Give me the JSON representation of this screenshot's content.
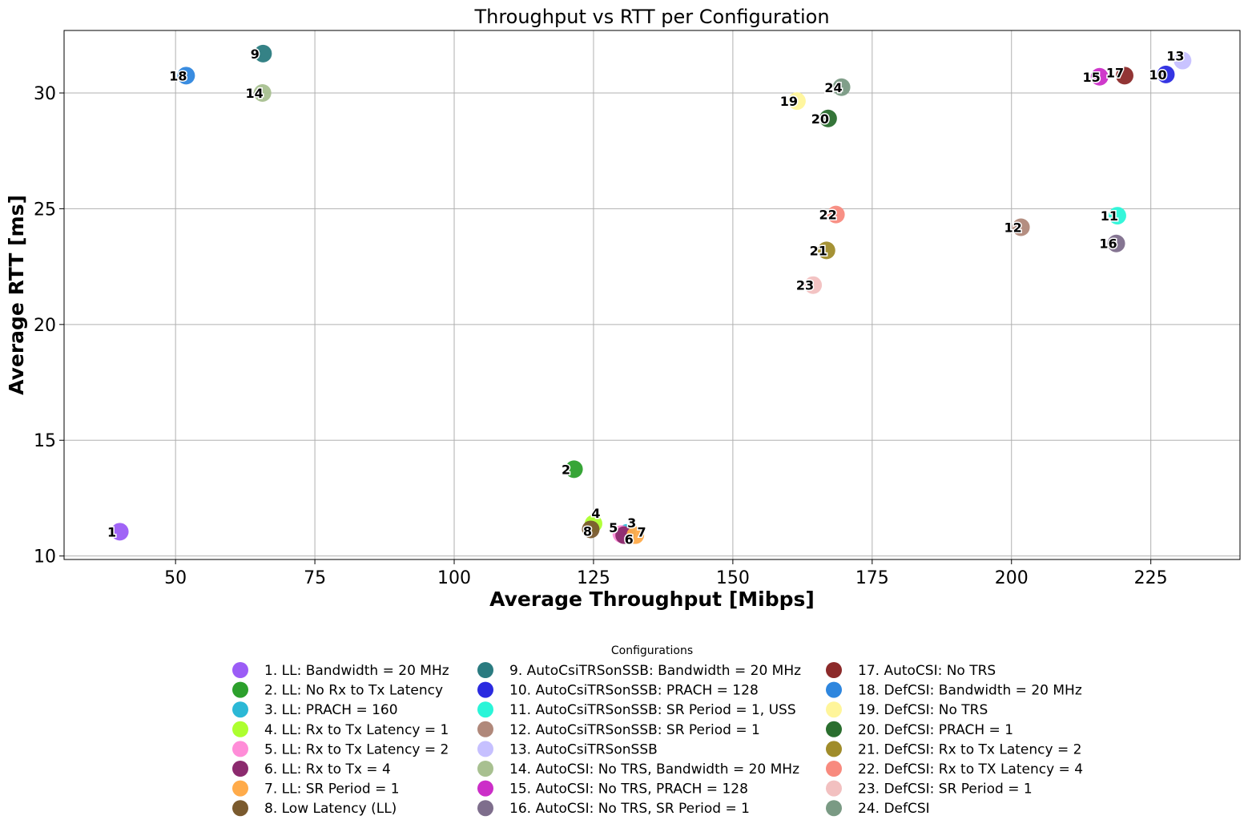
{
  "chart_data": {
    "type": "scatter",
    "title": "Throughput vs RTT per Configuration",
    "xlabel": "Average Throughput [Mibps]",
    "ylabel": "Average RTT [ms]",
    "xlim": [
      30,
      241
    ],
    "ylim": [
      9.85,
      32.7
    ],
    "xticks": [
      50,
      75,
      100,
      125,
      150,
      175,
      200,
      225
    ],
    "yticks": [
      10,
      15,
      20,
      25,
      30
    ],
    "grid": true,
    "legend_title": "Configurations",
    "legend_placement": "bottom-center",
    "points": [
      {
        "label": "1",
        "name": "1. LL: Bandwidth = 20 MHz",
        "x": 40.0,
        "y": 11.05,
        "color": "#9b5cf6"
      },
      {
        "label": "2",
        "name": "2. LL: No Rx to Tx Latency",
        "x": 121.5,
        "y": 13.75,
        "color": "#2ca02c"
      },
      {
        "label": "3",
        "name": "3. LL: PRACH = 160",
        "x": 131.0,
        "y": 11.0,
        "color": "#2bb8d6"
      },
      {
        "label": "4",
        "name": "4. LL: Rx to Tx Latency = 1",
        "x": 125.0,
        "y": 11.4,
        "color": "#adff2f"
      },
      {
        "label": "5",
        "name": "5. LL: Rx to Tx Latency = 2",
        "x": 130.0,
        "y": 10.95,
        "color": "#ff8dd8"
      },
      {
        "label": "6",
        "name": "6. LL: Rx to Tx = 4",
        "x": 130.5,
        "y": 10.9,
        "color": "#8b2a6e"
      },
      {
        "label": "7",
        "name": "7. LL: SR Period = 1",
        "x": 132.5,
        "y": 10.9,
        "color": "#ffab4a"
      },
      {
        "label": "8",
        "name": "8. Low Latency (LL)",
        "x": 124.5,
        "y": 11.15,
        "color": "#7a5a2e"
      },
      {
        "label": "9",
        "name": "9. AutoCsiTRSonSSB: Bandwidth = 20 MHz",
        "x": 65.7,
        "y": 31.7,
        "color": "#2a7b80"
      },
      {
        "label": "10",
        "name": "10. AutoCsiTRSonSSB: PRACH = 128",
        "x": 227.7,
        "y": 30.8,
        "color": "#2a2ae0"
      },
      {
        "label": "11",
        "name": "11. AutoCsiTRSonSSB: SR Period = 1, USS",
        "x": 219.0,
        "y": 24.7,
        "color": "#2af5d8"
      },
      {
        "label": "12",
        "name": "12. AutoCsiTRSonSSB: SR Period = 1",
        "x": 201.7,
        "y": 24.2,
        "color": "#b0887a"
      },
      {
        "label": "13",
        "name": "13. AutoCsiTRSonSSB",
        "x": 230.7,
        "y": 31.4,
        "color": "#c6c0ff"
      },
      {
        "label": "14",
        "name": "14. AutoCSI: No TRS, Bandwidth = 20 MHz",
        "x": 65.6,
        "y": 30.0,
        "color": "#a8c090"
      },
      {
        "label": "15",
        "name": "15. AutoCSI: No TRS, PRACH = 128",
        "x": 215.8,
        "y": 30.7,
        "color": "#cc2ec8"
      },
      {
        "label": "16",
        "name": "16. AutoCSI: No TRS, SR Period = 1",
        "x": 218.8,
        "y": 23.5,
        "color": "#7e6e8c"
      },
      {
        "label": "17",
        "name": "17. AutoCSI: No TRS",
        "x": 220.3,
        "y": 30.75,
        "color": "#8c2a2a"
      },
      {
        "label": "18",
        "name": "18. DefCSI: Bandwidth = 20 MHz",
        "x": 51.9,
        "y": 30.75,
        "color": "#2e86de"
      },
      {
        "label": "19",
        "name": "19. DefCSI: No TRS",
        "x": 161.5,
        "y": 29.65,
        "color": "#fff59a"
      },
      {
        "label": "20",
        "name": "20. DefCSI: PRACH = 1",
        "x": 167.1,
        "y": 28.9,
        "color": "#2a6e2e"
      },
      {
        "label": "21",
        "name": "21. DefCSI: Rx to Tx Latency = 2",
        "x": 166.8,
        "y": 23.2,
        "color": "#a08c2a"
      },
      {
        "label": "22",
        "name": "22. DefCSI: Rx to TX Latency = 4",
        "x": 168.5,
        "y": 24.75,
        "color": "#f88a7e"
      },
      {
        "label": "23",
        "name": "23. DefCSI: SR Period = 1",
        "x": 164.4,
        "y": 21.7,
        "color": "#f2c0c0"
      },
      {
        "label": "24",
        "name": "24. DefCSI",
        "x": 169.5,
        "y": 30.25,
        "color": "#7a9a84"
      }
    ]
  }
}
